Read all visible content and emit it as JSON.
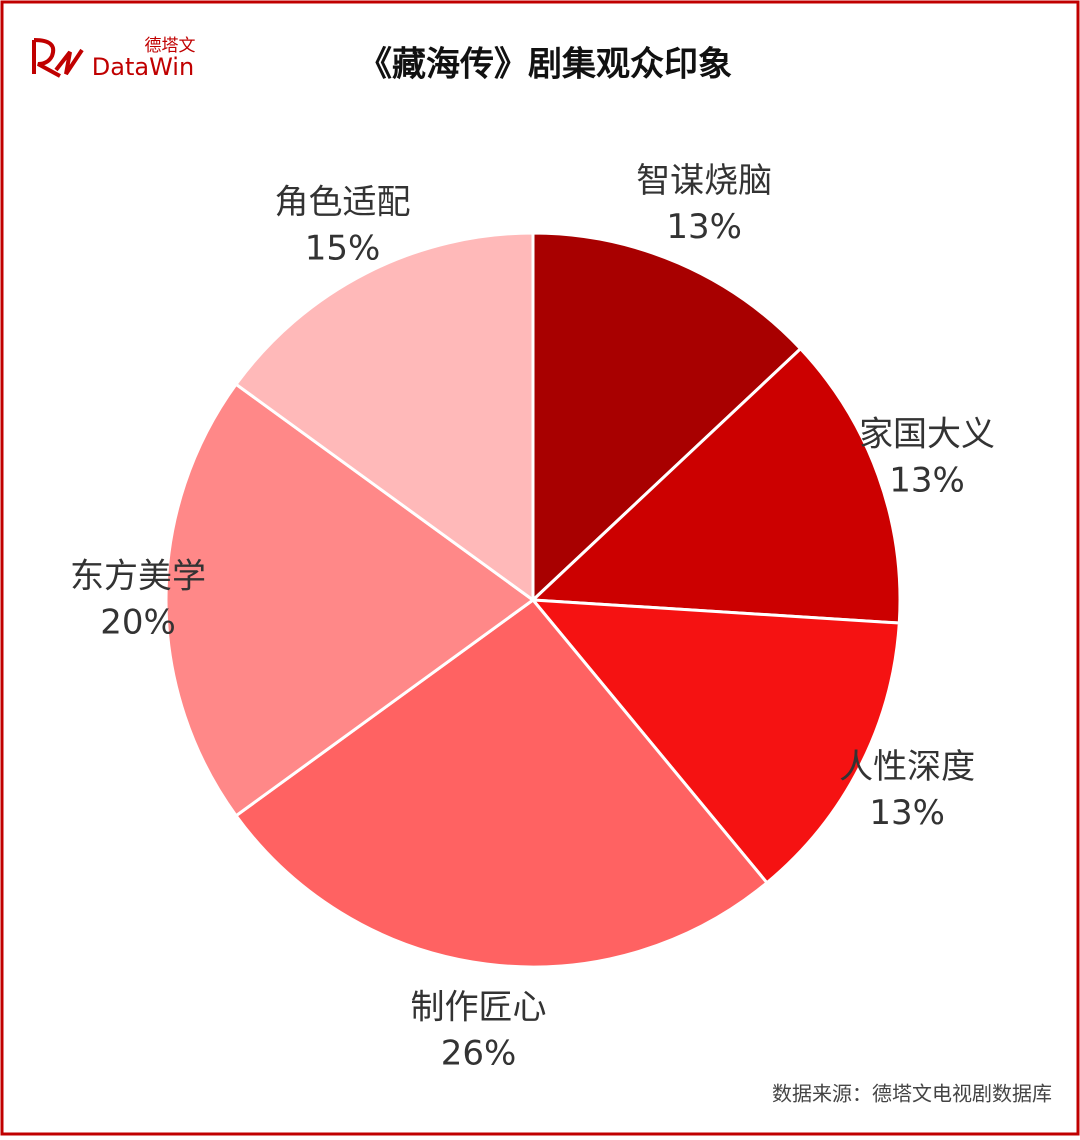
{
  "logo": {
    "cn": "德塔文",
    "en": "DataWin"
  },
  "chart_data": {
    "type": "pie",
    "title": "《藏海传》剧集观众印象",
    "categories": [
      "智谋烧脑",
      "家国大义",
      "人性深度",
      "制作匠心",
      "东方美学",
      "角色适配"
    ],
    "values": [
      13,
      13,
      13,
      26,
      20,
      15
    ],
    "value_labels": [
      "13%",
      "13%",
      "13%",
      "26%",
      "20%",
      "15%"
    ],
    "colors": [
      "#a80000",
      "#cc0000",
      "#f51212",
      "#ff6262",
      "#ff8888",
      "#ffb9b9"
    ]
  },
  "source": "数据来源：德塔文电视剧数据库"
}
